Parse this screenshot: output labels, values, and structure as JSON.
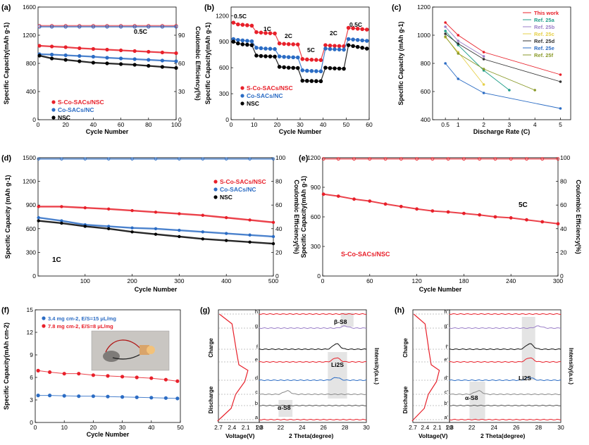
{
  "panels": [
    {
      "id": "a",
      "letter": "(a)",
      "type": "line",
      "x_label": "Cycle Number",
      "y_label": "Specific Capacity(mAh g-1)",
      "y2_label": "Coulombic Efficiency(%)",
      "x_ticks": [
        "0",
        "20",
        "40",
        "60",
        "80",
        "100"
      ],
      "y_ticks": [
        "0",
        "400",
        "800",
        "1200",
        "1600"
      ],
      "y2_ticks": [
        "0",
        "30",
        "60",
        "90"
      ],
      "xlim": [
        0,
        100
      ],
      "ylim": [
        0,
        1600
      ],
      "y2lim": [
        0,
        120
      ],
      "annotation": "0.5C",
      "legend": [
        "S-Co-SACs/NSC",
        "Co-SACs/NC",
        "NSC"
      ]
    },
    {
      "id": "b",
      "letter": "(b)",
      "type": "line",
      "x_label": "Cycle Number",
      "y_label": "Specific Capacity(mAh g-1)",
      "x_ticks": [
        "0",
        "10",
        "20",
        "30",
        "40",
        "50",
        "60"
      ],
      "y_ticks": [
        "0",
        "300",
        "600",
        "900",
        "1200"
      ],
      "xlim": [
        0,
        60
      ],
      "ylim": [
        0,
        1300
      ],
      "rate_labels": [
        "0.5C",
        "1C",
        "2C",
        "5C",
        "2C",
        "0.5C"
      ],
      "legend": [
        "S-Co-SACs/NSC",
        "Co-SACs/NC",
        "NSC"
      ]
    },
    {
      "id": "c",
      "letter": "(c)",
      "type": "line",
      "x_label": "Discharge Rate (C)",
      "y_label": "Specific Capacity (mAh g-1)",
      "x_ticks": [
        "0.5",
        "1",
        "2",
        "3",
        "4",
        "5"
      ],
      "y_ticks": [
        "400",
        "600",
        "800",
        "1000",
        "1200"
      ],
      "ylim": [
        400,
        1200
      ],
      "legend": [
        "This work",
        "Ref. 25a",
        "Ref. 25b",
        "Ref. 25c",
        "Ref. 25d",
        "Ref. 25e",
        "Ref. 25f"
      ]
    },
    {
      "id": "d",
      "letter": "(d)",
      "type": "line",
      "x_label": "Cycle Number",
      "y_label": "Specific Capacity (mAh g-1)",
      "y2_label": "Coulombic Efficiency(%)",
      "x_ticks": [
        "100",
        "200",
        "300",
        "400",
        "500"
      ],
      "y_ticks": [
        "0",
        "300",
        "600",
        "900",
        "1200",
        "1500"
      ],
      "y2_ticks": [
        "0",
        "20",
        "40",
        "60",
        "80",
        "100"
      ],
      "xlim": [
        0,
        500
      ],
      "ylim": [
        0,
        1500
      ],
      "y2lim": [
        0,
        100
      ],
      "annotation": "1C",
      "legend": [
        "S-Co-SACs/NSC",
        "Co-SACs/NC",
        "NSC"
      ]
    },
    {
      "id": "e",
      "letter": "(e)",
      "type": "line",
      "x_label": "Cycle Number",
      "y_label": "Specific Capacity(mAh g-1)",
      "y2_label": "Coulombic Efficiency(%)",
      "x_ticks": [
        "0",
        "60",
        "120",
        "180",
        "240",
        "300"
      ],
      "y_ticks": [
        "0",
        "300",
        "600",
        "900",
        "1200"
      ],
      "y2_ticks": [
        "0",
        "20",
        "40",
        "60",
        "80",
        "100"
      ],
      "xlim": [
        0,
        300
      ],
      "ylim": [
        0,
        1200
      ],
      "y2lim": [
        0,
        100
      ],
      "annotation": "5C",
      "legend": [
        "S-Co-SACs/NSC"
      ]
    },
    {
      "id": "f",
      "letter": "(f)",
      "type": "line",
      "x_label": "Cycle Number",
      "y_label": "Specific Capacity(mAh cm-2)",
      "x_ticks": [
        "0",
        "10",
        "20",
        "30",
        "40",
        "50"
      ],
      "y_ticks": [
        "0",
        "3",
        "6",
        "9",
        "12",
        "15"
      ],
      "xlim": [
        0,
        50
      ],
      "ylim": [
        0,
        15
      ],
      "legend": [
        "3.4 mg cm-2, E/S=15 μL/mg",
        "7.8 mg cm-2, E/S=8 μL/mg"
      ]
    },
    {
      "id": "g",
      "letter": "(g)",
      "type": "line",
      "x_label": "Voltage(V)",
      "x2_label": "2 Theta(degree)",
      "y_label": "Intensity(a.u.)",
      "x_ticks": [
        "2.7",
        "2.4",
        "2.1",
        "1.8"
      ],
      "x2_ticks": [
        "20",
        "22",
        "24",
        "26",
        "28",
        "30"
      ],
      "side_labels": [
        "Charge",
        "Discharge"
      ],
      "points": [
        "a",
        "b",
        "c",
        "d",
        "e",
        "f",
        "g",
        "h"
      ],
      "peaks": [
        "β-S8",
        "Li2S",
        "α-S8"
      ]
    },
    {
      "id": "h",
      "letter": "(h)",
      "type": "line",
      "x_label": "Voltage(V)",
      "x2_label": "2 Theta(degree)",
      "y_label": "Intensity(a.u.)",
      "x_ticks": [
        "2.7",
        "2.4",
        "2.1",
        "1.8"
      ],
      "x2_ticks": [
        "20",
        "22",
        "24",
        "26",
        "28",
        "30"
      ],
      "side_labels": [
        "Charge",
        "Discharge"
      ],
      "points": [
        "a'",
        "b'",
        "c'",
        "d'",
        "e'",
        "f'",
        "g'",
        "h'"
      ],
      "peaks": [
        "Li2S",
        "α-S8"
      ]
    }
  ],
  "chart_data": [
    {
      "panel": "a",
      "type": "scatter",
      "xlim": [
        0,
        100
      ],
      "ylim": [
        0,
        1600
      ],
      "series": [
        {
          "name": "S-Co-SACs/NSC",
          "color": "#e8202a",
          "x": [
            1,
            10,
            20,
            30,
            40,
            50,
            60,
            70,
            80,
            90,
            100
          ],
          "y": [
            1050,
            1040,
            1030,
            1015,
            1005,
            995,
            985,
            975,
            965,
            955,
            945
          ]
        },
        {
          "name": "Co-SACs/NC",
          "color": "#2b6cc4",
          "x": [
            1,
            10,
            20,
            30,
            40,
            50,
            60,
            70,
            80,
            90,
            100
          ],
          "y": [
            930,
            925,
            915,
            905,
            895,
            880,
            870,
            860,
            850,
            840,
            830
          ]
        },
        {
          "name": "NSC",
          "color": "#000000",
          "x": [
            1,
            10,
            20,
            30,
            40,
            50,
            60,
            70,
            80,
            90,
            100
          ],
          "y": [
            910,
            870,
            850,
            830,
            810,
            800,
            790,
            780,
            765,
            750,
            735
          ]
        },
        {
          "name": "S-Co-SACs/NSC CE",
          "color": "#e8202a",
          "axis": "y2",
          "x": [
            1,
            10,
            20,
            30,
            40,
            50,
            60,
            70,
            80,
            90,
            100
          ],
          "y": [
            100,
            100,
            100,
            100,
            100,
            100,
            100,
            100,
            100,
            100,
            100
          ]
        },
        {
          "name": "Co-SACs/NC CE",
          "color": "#2b6cc4",
          "axis": "y2",
          "x": [
            1,
            10,
            20,
            30,
            40,
            50,
            60,
            70,
            80,
            90,
            100
          ],
          "y": [
            99,
            99,
            99,
            99,
            99,
            99,
            99,
            99,
            99,
            99,
            99
          ]
        }
      ]
    },
    {
      "panel": "b",
      "type": "scatter",
      "xlim": [
        0,
        60
      ],
      "ylim": [
        0,
        1300
      ],
      "series": [
        {
          "name": "S-Co-SACs/NSC",
          "color": "#e8202a",
          "x": [
            1,
            3,
            5,
            7,
            9,
            11,
            13,
            15,
            17,
            19,
            21,
            23,
            25,
            27,
            29,
            31,
            33,
            35,
            37,
            39,
            41,
            43,
            45,
            47,
            49,
            51,
            53,
            55,
            57,
            59
          ],
          "y": [
            1120,
            1100,
            1095,
            1090,
            1085,
            1010,
            1005,
            1000,
            998,
            995,
            880,
            875,
            872,
            870,
            868,
            700,
            695,
            692,
            690,
            688,
            860,
            855,
            852,
            850,
            848,
            1060,
            1055,
            1050,
            1045,
            1040
          ]
        },
        {
          "name": "Co-SACs/NC",
          "color": "#2b6cc4",
          "x": [
            1,
            3,
            5,
            7,
            9,
            11,
            13,
            15,
            17,
            19,
            21,
            23,
            25,
            27,
            29,
            31,
            33,
            35,
            37,
            39,
            41,
            43,
            45,
            47,
            49,
            51,
            53,
            55,
            57,
            59
          ],
          "y": [
            930,
            920,
            915,
            910,
            905,
            830,
            825,
            820,
            818,
            815,
            730,
            725,
            722,
            720,
            718,
            570,
            565,
            562,
            560,
            558,
            820,
            815,
            812,
            810,
            808,
            930,
            925,
            920,
            915,
            910
          ]
        },
        {
          "name": "NSC",
          "color": "#000000",
          "x": [
            1,
            3,
            5,
            7,
            9,
            11,
            13,
            15,
            17,
            19,
            21,
            23,
            25,
            27,
            29,
            31,
            33,
            35,
            37,
            39,
            41,
            43,
            45,
            47,
            49,
            51,
            53,
            55,
            57,
            59
          ],
          "y": [
            900,
            880,
            870,
            865,
            860,
            740,
            735,
            732,
            730,
            728,
            610,
            605,
            600,
            598,
            596,
            450,
            448,
            446,
            445,
            444,
            600,
            595,
            592,
            590,
            588,
            860,
            850,
            840,
            830,
            820
          ]
        }
      ]
    },
    {
      "panel": "c",
      "type": "line",
      "x": [
        0.5,
        1,
        2,
        3,
        4,
        5
      ],
      "ylim": [
        400,
        1200
      ],
      "series": [
        {
          "name": "This work",
          "color": "#e8202a",
          "x": [
            0.5,
            1,
            2,
            5
          ],
          "y": [
            1090,
            1000,
            880,
            720
          ]
        },
        {
          "name": "Ref. 25a",
          "color": "#1f9e89",
          "x": [
            0.5,
            1,
            2,
            3
          ],
          "y": [
            1030,
            930,
            750,
            610
          ]
        },
        {
          "name": "Ref. 25b",
          "color": "#9b7fc8",
          "x": [
            0.5,
            1,
            2
          ],
          "y": [
            1060,
            960,
            850
          ]
        },
        {
          "name": "Ref. 25c",
          "color": "#e6d04a",
          "x": [
            0.5,
            1,
            2
          ],
          "y": [
            985,
            880,
            650
          ]
        },
        {
          "name": "Ref. 25d",
          "color": "#333333",
          "x": [
            0.5,
            1,
            2,
            5
          ],
          "y": [
            1010,
            940,
            830,
            670
          ]
        },
        {
          "name": "Ref. 25e",
          "color": "#2b6cc4",
          "x": [
            0.5,
            1,
            2,
            5
          ],
          "y": [
            800,
            690,
            590,
            480
          ]
        },
        {
          "name": "Ref. 25f",
          "color": "#8a9a2a",
          "x": [
            0.5,
            1,
            2,
            4
          ],
          "y": [
            990,
            870,
            760,
            610
          ]
        }
      ]
    },
    {
      "panel": "d",
      "type": "scatter",
      "xlim": [
        0,
        500
      ],
      "ylim": [
        0,
        1500
      ],
      "series": [
        {
          "name": "S-Co-SACs/NSC",
          "color": "#e8202a",
          "x": [
            1,
            50,
            100,
            150,
            200,
            250,
            300,
            350,
            400,
            450,
            500
          ],
          "y": [
            880,
            880,
            865,
            850,
            830,
            810,
            790,
            770,
            740,
            710,
            680
          ]
        },
        {
          "name": "Co-SACs/NC",
          "color": "#2b6cc4",
          "x": [
            1,
            50,
            100,
            150,
            200,
            250,
            300,
            350,
            400,
            450,
            500
          ],
          "y": [
            740,
            700,
            650,
            630,
            610,
            600,
            580,
            560,
            540,
            520,
            500
          ]
        },
        {
          "name": "NSC",
          "color": "#000000",
          "x": [
            1,
            50,
            100,
            150,
            200,
            250,
            300,
            350,
            400,
            450,
            500
          ],
          "y": [
            700,
            670,
            630,
            600,
            560,
            530,
            500,
            470,
            450,
            430,
            410
          ]
        },
        {
          "name": "CE",
          "color": "#2b6cc4",
          "axis": "y2",
          "x": [
            1,
            50,
            100,
            150,
            200,
            250,
            300,
            350,
            400,
            450,
            500
          ],
          "y": [
            99,
            99,
            99,
            99,
            99,
            99,
            99,
            99,
            99,
            99,
            99
          ]
        }
      ]
    },
    {
      "panel": "e",
      "type": "scatter",
      "xlim": [
        0,
        300
      ],
      "ylim": [
        0,
        1200
      ],
      "series": [
        {
          "name": "S-Co-SACs/NSC",
          "color": "#e8202a",
          "x": [
            1,
            20,
            40,
            60,
            80,
            100,
            120,
            140,
            160,
            180,
            200,
            220,
            240,
            260,
            280,
            300
          ],
          "y": [
            830,
            810,
            780,
            760,
            730,
            705,
            680,
            660,
            650,
            635,
            620,
            600,
            590,
            570,
            550,
            530
          ]
        },
        {
          "name": "CE",
          "color": "#e8202a",
          "axis": "y2",
          "x": [
            1,
            20,
            40,
            60,
            80,
            100,
            120,
            140,
            160,
            180,
            200,
            220,
            240,
            260,
            280,
            300
          ],
          "y": [
            99,
            99,
            99,
            99,
            99,
            99,
            99,
            99,
            99,
            99,
            99,
            99,
            99,
            99,
            99,
            99
          ]
        }
      ]
    },
    {
      "panel": "f",
      "type": "scatter",
      "xlim": [
        0,
        50
      ],
      "ylim": [
        0,
        15
      ],
      "series": [
        {
          "name": "3.4 mg cm-2, E/S=15 μL/mg",
          "color": "#2b6cc4",
          "x": [
            1,
            5,
            10,
            15,
            20,
            25,
            30,
            35,
            40,
            45,
            49
          ],
          "y": [
            3.6,
            3.6,
            3.55,
            3.5,
            3.5,
            3.45,
            3.4,
            3.35,
            3.3,
            3.25,
            3.2
          ]
        },
        {
          "name": "7.8 mg cm-2, E/S=8 μL/mg",
          "color": "#e8202a",
          "x": [
            1,
            5,
            10,
            15,
            20,
            25,
            30,
            35,
            40,
            45,
            49
          ],
          "y": [
            6.9,
            6.7,
            6.5,
            6.5,
            6.3,
            6.2,
            6.1,
            6.0,
            5.9,
            5.7,
            5.5
          ]
        }
      ]
    }
  ]
}
